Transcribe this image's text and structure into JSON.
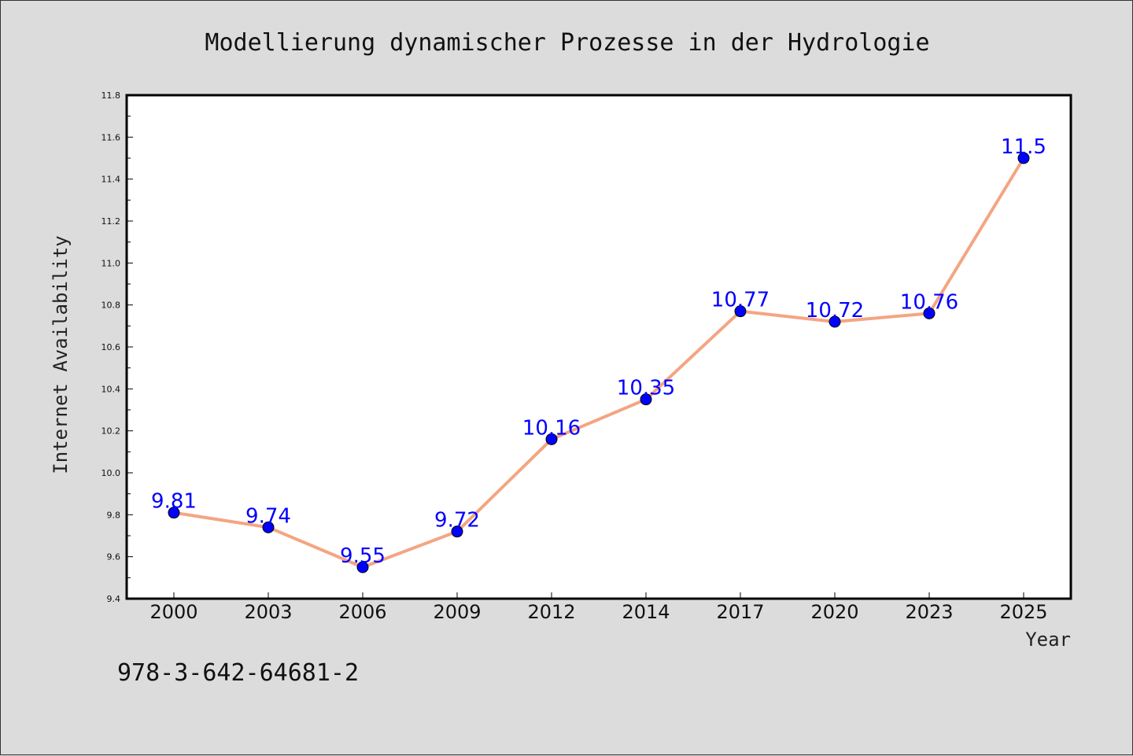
{
  "chart_data": {
    "type": "line",
    "title": "Modellierung dynamischer Prozesse in der Hydrologie",
    "xlabel": "Year",
    "ylabel": "Internet Availability",
    "categories": [
      "2000",
      "2003",
      "2006",
      "2009",
      "2012",
      "2014",
      "2017",
      "2020",
      "2023",
      "2025"
    ],
    "series": [
      {
        "values": [
          9.81,
          9.74,
          9.55,
          9.72,
          10.16,
          10.35,
          10.77,
          10.72,
          10.76,
          11.5
        ],
        "labels": [
          "9.81",
          "9.74",
          "9.55",
          "9.72",
          "10.16",
          "10.35",
          "10.77",
          "10.72",
          "10.76",
          "11.5"
        ]
      }
    ],
    "ylim": [
      9.4,
      11.8
    ],
    "yticks": [
      "9.4",
      "9.6",
      "9.8",
      "10.0",
      "10.2",
      "10.4",
      "10.6",
      "10.8",
      "11.0",
      "11.2",
      "11.4",
      "11.6",
      "11.8"
    ],
    "grid": false,
    "legend": "none",
    "footnote": "978-3-642-64681-2",
    "colors": {
      "line": "#f4a582",
      "marker": "#0000ff",
      "data_label": "#0000ff",
      "plot_background": "#ffffff",
      "figure_background": "#dcdcdc"
    }
  }
}
